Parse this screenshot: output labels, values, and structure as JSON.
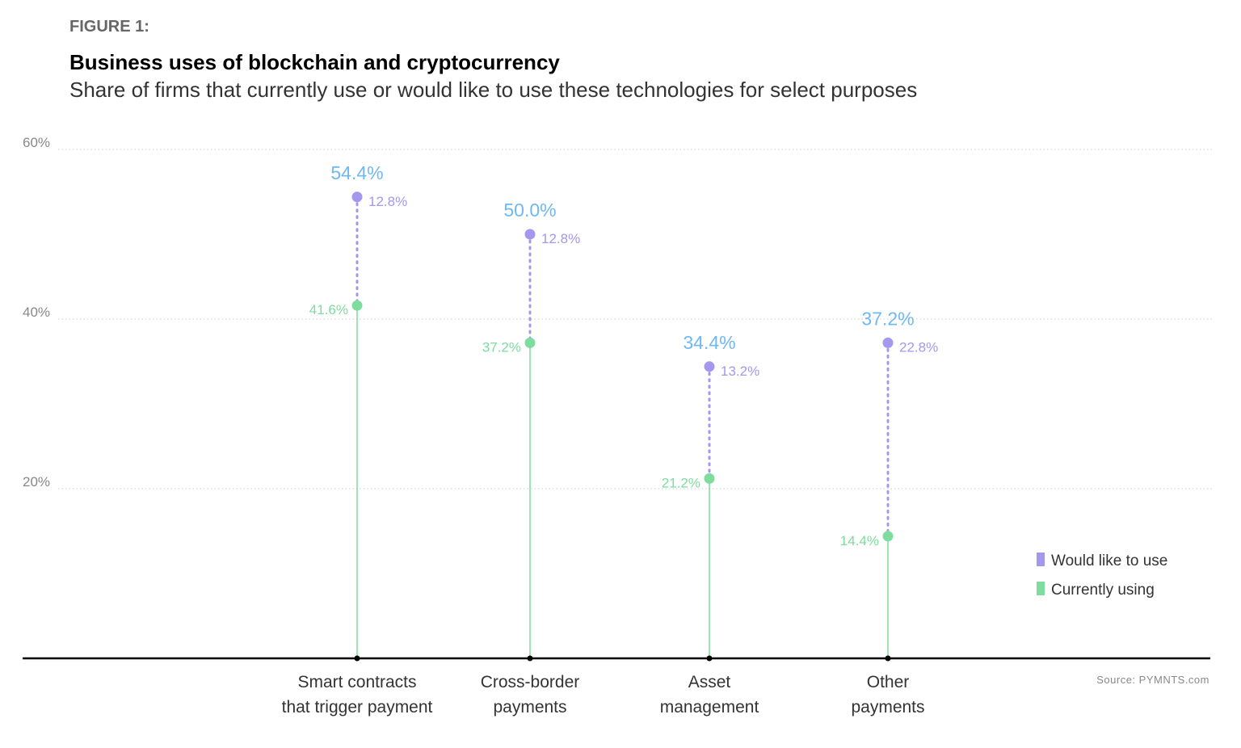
{
  "figure_label": "FIGURE 1:",
  "chart_data": {
    "type": "lollipop (stacked dot)",
    "title": "Business uses of blockchain and cryptocurrency",
    "subtitle": "Share of firms that currently use or would like to use these technologies for select purposes",
    "categories": [
      [
        "Smart contracts",
        "that trigger payment"
      ],
      [
        "Cross-border",
        "payments"
      ],
      [
        "Asset",
        "management"
      ],
      [
        "Other",
        "payments"
      ]
    ],
    "series": [
      {
        "name": "Currently using",
        "color": "#7ddc9e",
        "values": [
          41.6,
          37.2,
          21.2,
          14.4
        ],
        "labels": [
          "41.6%",
          "37.2%",
          "21.2%",
          "14.4%"
        ]
      },
      {
        "name": "Would like to use",
        "color": "#a497ee",
        "values": [
          12.8,
          12.8,
          13.2,
          22.8
        ],
        "labels": [
          "12.8%",
          "12.8%",
          "13.2%",
          "22.8%"
        ]
      }
    ],
    "totals": [
      54.4,
      50.0,
      34.4,
      37.2
    ],
    "total_labels": [
      "54.4%",
      "50.0%",
      "34.4%",
      "37.2%"
    ],
    "total_color": "#6fb8f5",
    "ylim": [
      0,
      60
    ],
    "yticks": [
      20,
      40,
      60
    ],
    "ytick_labels": [
      "20%",
      "40%",
      "60%"
    ],
    "grid": "dotted horizontal",
    "legend_position": "bottom-right",
    "source": "Source: PYMNTS.com"
  }
}
